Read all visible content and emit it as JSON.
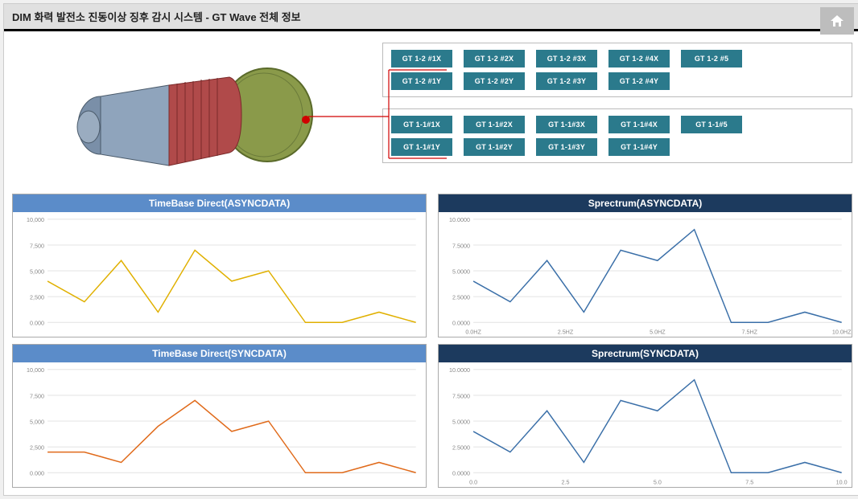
{
  "header": {
    "title": "DIM  화력 발전소 진동이상 징후 감시 시스템 - GT Wave 전체 정보"
  },
  "group1": {
    "row1": [
      "GT 1-2 #1X",
      "GT 1-2 #2X",
      "GT 1-2 #3X",
      "GT 1-2 #4X",
      "GT 1-2 #5"
    ],
    "row2": [
      "GT 1-2 #1Y",
      "GT 1-2 #2Y",
      "GT 1-2 #3Y",
      "GT 1-2 #4Y"
    ]
  },
  "group2": {
    "row1": [
      "GT 1-1#1X",
      "GT 1-1#2X",
      "GT 1-1#3X",
      "GT 1-1#4X",
      "GT 1-1#5"
    ],
    "row2": [
      "GT 1-1#1Y",
      "GT 1-1#2Y",
      "GT 1-1#3Y",
      "GT 1-1#4Y"
    ]
  },
  "charts": {
    "timebase_async": {
      "title": "TimeBase Direct(ASYNCDATA)",
      "header_style": "blue",
      "line_color": "#e0b000",
      "ylim": [
        0,
        10000
      ],
      "ytick_step": 2500,
      "ylabels": [
        "0.000",
        "2,500",
        "5,000",
        "7,500",
        "10,000"
      ],
      "xticks": [],
      "values": [
        4000,
        2000,
        6000,
        1000,
        7000,
        4000,
        5000,
        0,
        0,
        1000,
        0
      ]
    },
    "timebase_sync": {
      "title": "TimeBase Direct(SYNCDATA)",
      "header_style": "blue",
      "line_color": "#e06a1a",
      "ylim": [
        0,
        10000
      ],
      "ytick_step": 2500,
      "ylabels": [
        "0.000",
        "2,500",
        "5,000",
        "7,500",
        "10,000"
      ],
      "xticks": [],
      "values": [
        2000,
        2000,
        1000,
        4500,
        7000,
        4000,
        5000,
        0,
        0,
        1000,
        0
      ]
    },
    "spectrum_async": {
      "title": "Sprectrum(ASYNCDATA)",
      "header_style": "navy",
      "line_color": "#3a6fa8",
      "ylim": [
        0,
        10000
      ],
      "ytick_step": 2500,
      "ylabels": [
        "0.0000",
        "2.5000",
        "5.0000",
        "7.5000",
        "10.0000"
      ],
      "xticks": [
        "0.0HZ",
        "2.5HZ",
        "5.0HZ",
        "7.5HZ",
        "10.0HZ"
      ],
      "values": [
        4000,
        2000,
        6000,
        1000,
        7000,
        6000,
        9000,
        0,
        0,
        1000,
        0
      ]
    },
    "spectrum_sync": {
      "title": "Sprectrum(SYNCDATA)",
      "header_style": "navy",
      "line_color": "#3a6fa8",
      "ylim": [
        0,
        10000
      ],
      "ytick_step": 2500,
      "ylabels": [
        "0.0000",
        "2.5000",
        "5.0000",
        "7.5000",
        "10.0000"
      ],
      "xticks": [
        "0.0",
        "2.5",
        "5.0",
        "7.5",
        "10.0"
      ],
      "values": [
        4000,
        2000,
        6000,
        1000,
        7000,
        6000,
        9000,
        0,
        0,
        1000,
        0
      ]
    }
  },
  "connector_color": "#d00000",
  "turbine_colors": {
    "left": "#7a8fa8",
    "mid": "#b04a4a",
    "right": "#8a9a4a"
  },
  "button_color": "#2b7a8c"
}
